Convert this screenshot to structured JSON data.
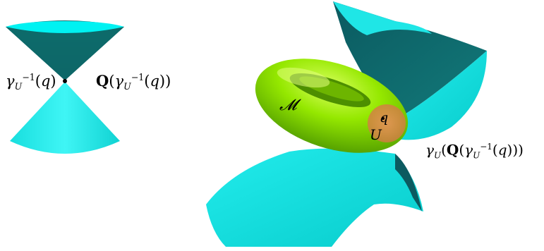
{
  "labels": {
    "gamma_inv": "γ_U^{-1}(q)",
    "Q_of_gamma_inv": "Q(γ_U^{-1}(q))",
    "manifold": "𝓜",
    "point_q": "q",
    "neighborhood_U": "U",
    "gamma_Q": "γ_U(Q(γ_U^{-1}(q)))"
  },
  "colors": {
    "cone_light": "#00F2F2",
    "cone_dark": "#0A6464",
    "torus_green": "#8CE600",
    "neighborhood_orange": "#E08A50",
    "background": "#FFFFFF"
  }
}
